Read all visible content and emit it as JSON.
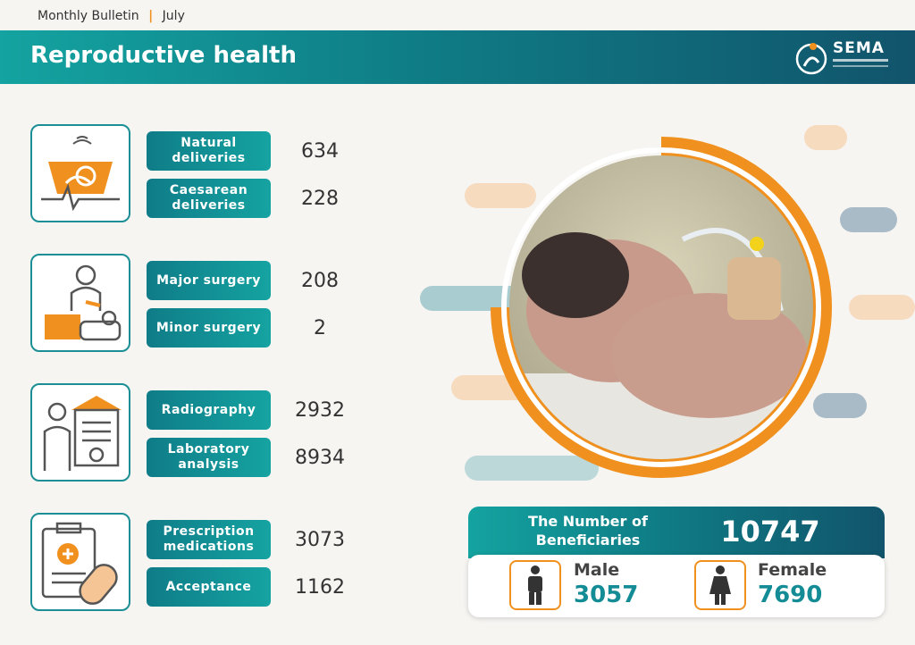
{
  "header": {
    "bulletin": "Monthly Bulletin",
    "separator": "|",
    "month": "July"
  },
  "banner": {
    "title": "Reproductive health",
    "logo_text": "SEMA"
  },
  "services": [
    {
      "icon": "ultrasound-icon",
      "items": [
        {
          "label": "Natural deliveries",
          "value": "634"
        },
        {
          "label": "Caesarean deliveries",
          "value": "228"
        }
      ]
    },
    {
      "icon": "surgeon-icon",
      "items": [
        {
          "label": "Major surgery",
          "value": "208"
        },
        {
          "label": "Minor surgery",
          "value": "2"
        }
      ]
    },
    {
      "icon": "radiography-icon",
      "items": [
        {
          "label": "Radiography",
          "value": "2932"
        },
        {
          "label": "Laboratory analysis",
          "value": "8934"
        }
      ]
    },
    {
      "icon": "prescription-icon",
      "items": [
        {
          "label": "Prescription medications",
          "value": "3073"
        },
        {
          "label": "Acceptance",
          "value": "1162"
        }
      ]
    }
  ],
  "beneficiaries": {
    "label": "The Number of Beneficiaries",
    "total": "10747",
    "male": {
      "label": "Male",
      "value": "3057",
      "icon": "male-icon"
    },
    "female": {
      "label": "Female",
      "value": "7690",
      "icon": "female-icon"
    }
  },
  "colors": {
    "teal": "#14a3a0",
    "dark_teal": "#11546b",
    "orange": "#f0901e"
  }
}
